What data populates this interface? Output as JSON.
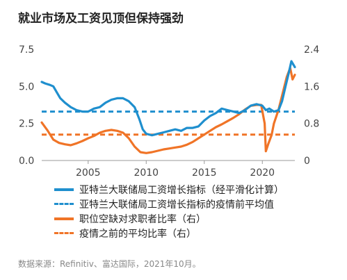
{
  "chart_data": {
    "type": "line",
    "title": "就业市场及工资见顶但保持强劲",
    "x_range": [
      2001,
      2022.8
    ],
    "x_ticks": [
      2005,
      2010,
      2015,
      2020
    ],
    "y_left": {
      "range": [
        0,
        7.5
      ],
      "ticks": [
        0.0,
        2.5,
        5.0,
        7.5
      ],
      "tick_labels": [
        "0.0",
        "2.5",
        "5.0",
        "7.5"
      ]
    },
    "y_right": {
      "range": [
        0,
        2.4
      ],
      "ticks": [
        0,
        0.8,
        1.6,
        2.4
      ],
      "tick_labels": [
        "0",
        "0.8",
        "1.6",
        "2.4"
      ]
    },
    "colors": {
      "blue": "#1f8fce",
      "orange": "#f07427",
      "axis": "#999999"
    },
    "series": [
      {
        "name": "亚特兰大联储局工资增长指标（经平滑化计算）",
        "axis": "left",
        "style": "solid",
        "color": "#1f8fce",
        "points": [
          [
            2001.0,
            5.3
          ],
          [
            2001.3,
            5.2
          ],
          [
            2001.7,
            5.1
          ],
          [
            2002.0,
            5.0
          ],
          [
            2002.3,
            4.6
          ],
          [
            2002.6,
            4.2
          ],
          [
            2003.0,
            3.9
          ],
          [
            2003.5,
            3.6
          ],
          [
            2004.0,
            3.4
          ],
          [
            2004.5,
            3.3
          ],
          [
            2005.0,
            3.3
          ],
          [
            2005.5,
            3.5
          ],
          [
            2006.0,
            3.6
          ],
          [
            2006.5,
            3.9
          ],
          [
            2007.0,
            4.1
          ],
          [
            2007.5,
            4.2
          ],
          [
            2008.0,
            4.2
          ],
          [
            2008.5,
            4.0
          ],
          [
            2009.0,
            3.6
          ],
          [
            2009.4,
            2.8
          ],
          [
            2009.7,
            2.1
          ],
          [
            2010.0,
            1.8
          ],
          [
            2010.5,
            1.7
          ],
          [
            2011.0,
            1.8
          ],
          [
            2011.5,
            1.9
          ],
          [
            2012.0,
            2.0
          ],
          [
            2012.5,
            2.1
          ],
          [
            2013.0,
            2.0
          ],
          [
            2013.5,
            2.2
          ],
          [
            2014.0,
            2.2
          ],
          [
            2014.5,
            2.3
          ],
          [
            2015.0,
            2.7
          ],
          [
            2015.5,
            3.0
          ],
          [
            2016.0,
            3.2
          ],
          [
            2016.5,
            3.5
          ],
          [
            2017.0,
            3.4
          ],
          [
            2017.5,
            3.3
          ],
          [
            2018.0,
            3.2
          ],
          [
            2018.5,
            3.4
          ],
          [
            2019.0,
            3.7
          ],
          [
            2019.5,
            3.8
          ],
          [
            2020.0,
            3.7
          ],
          [
            2020.3,
            3.4
          ],
          [
            2020.6,
            3.5
          ],
          [
            2021.0,
            3.3
          ],
          [
            2021.4,
            3.4
          ],
          [
            2021.7,
            4.0
          ],
          [
            2022.0,
            5.0
          ],
          [
            2022.3,
            6.0
          ],
          [
            2022.5,
            6.7
          ],
          [
            2022.8,
            6.3
          ]
        ]
      },
      {
        "name": "亚特兰大联储局工资增长指标的疫情前平均值",
        "axis": "left",
        "style": "dashed",
        "color": "#1f8fce",
        "points": [
          [
            2001.0,
            3.3
          ],
          [
            2022.8,
            3.3
          ]
        ]
      },
      {
        "name": "职位空缺对求职者比率（右）",
        "axis": "right",
        "style": "solid",
        "color": "#f07427",
        "points": [
          [
            2001.0,
            0.82
          ],
          [
            2001.5,
            0.65
          ],
          [
            2002.0,
            0.45
          ],
          [
            2002.5,
            0.38
          ],
          [
            2003.0,
            0.35
          ],
          [
            2003.5,
            0.33
          ],
          [
            2004.0,
            0.37
          ],
          [
            2004.5,
            0.42
          ],
          [
            2005.0,
            0.48
          ],
          [
            2005.5,
            0.53
          ],
          [
            2006.0,
            0.6
          ],
          [
            2006.5,
            0.64
          ],
          [
            2007.0,
            0.66
          ],
          [
            2007.5,
            0.64
          ],
          [
            2008.0,
            0.6
          ],
          [
            2008.5,
            0.48
          ],
          [
            2009.0,
            0.3
          ],
          [
            2009.5,
            0.18
          ],
          [
            2010.0,
            0.16
          ],
          [
            2010.5,
            0.18
          ],
          [
            2011.0,
            0.21
          ],
          [
            2011.5,
            0.24
          ],
          [
            2012.0,
            0.26
          ],
          [
            2012.5,
            0.28
          ],
          [
            2013.0,
            0.3
          ],
          [
            2013.5,
            0.34
          ],
          [
            2014.0,
            0.4
          ],
          [
            2014.5,
            0.48
          ],
          [
            2015.0,
            0.56
          ],
          [
            2015.5,
            0.64
          ],
          [
            2016.0,
            0.72
          ],
          [
            2016.5,
            0.78
          ],
          [
            2017.0,
            0.85
          ],
          [
            2017.5,
            0.92
          ],
          [
            2018.0,
            1.0
          ],
          [
            2018.5,
            1.1
          ],
          [
            2019.0,
            1.18
          ],
          [
            2019.5,
            1.2
          ],
          [
            2019.9,
            1.2
          ],
          [
            2020.2,
            0.8
          ],
          [
            2020.3,
            0.2
          ],
          [
            2020.5,
            0.35
          ],
          [
            2020.8,
            0.55
          ],
          [
            2021.0,
            0.8
          ],
          [
            2021.4,
            1.1
          ],
          [
            2021.8,
            1.5
          ],
          [
            2022.1,
            1.8
          ],
          [
            2022.4,
            2.0
          ],
          [
            2022.6,
            1.75
          ],
          [
            2022.8,
            1.85
          ]
        ]
      },
      {
        "name": "疫情之前的平均比率（右）",
        "axis": "right",
        "style": "dashed",
        "color": "#f07427",
        "points": [
          [
            2001.0,
            0.56
          ],
          [
            2022.8,
            0.56
          ]
        ]
      }
    ],
    "legend_position": "bottom",
    "grid": false
  },
  "source_note": "数据来源：Refinitiv、富达国际，2021年10月。"
}
